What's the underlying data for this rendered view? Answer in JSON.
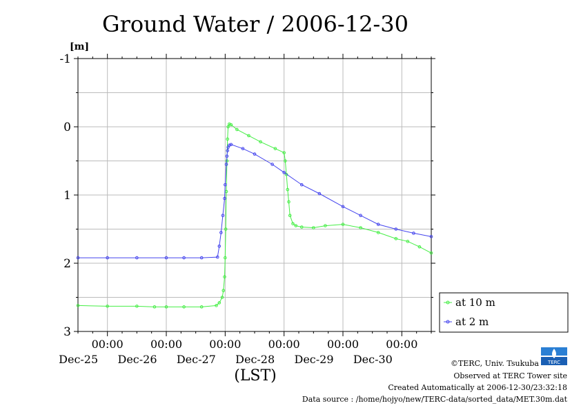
{
  "chart_data": {
    "type": "line",
    "title": "Ground Water / 2006-12-30",
    "xlabel": "(LST)",
    "ylabel": "[m]",
    "ylim": [
      3,
      -1
    ],
    "y_inverted": true,
    "y_ticks": [
      "-1",
      "0",
      "1",
      "2",
      "3"
    ],
    "y_tick_values": [
      -1,
      0,
      1,
      2,
      3
    ],
    "x_unit": "day of December 2006",
    "xlim": [
      24.5,
      30.5
    ],
    "x_ticks": [
      {
        "time": "00:00",
        "date": "Dec-25",
        "value": 25
      },
      {
        "time": "00:00",
        "date": "Dec-26",
        "value": 26
      },
      {
        "time": "00:00",
        "date": "Dec-27",
        "value": 27
      },
      {
        "time": "00:00",
        "date": "Dec-28",
        "value": 28
      },
      {
        "time": "00:00",
        "date": "Dec-29",
        "value": 29
      },
      {
        "time": "00:00",
        "date": "Dec-30",
        "value": 30
      }
    ],
    "grid": true,
    "legend_position": "right",
    "series": [
      {
        "name": "at 10 m",
        "color": "#44ee44",
        "marker": "circle",
        "x": [
          24.5,
          25.0,
          25.5,
          25.8,
          26.0,
          26.3,
          26.6,
          26.85,
          26.9,
          26.95,
          26.97,
          26.99,
          27.0,
          27.01,
          27.02,
          27.03,
          27.04,
          27.05,
          27.07,
          27.1,
          27.2,
          27.4,
          27.6,
          27.85,
          28.0,
          28.02,
          28.04,
          28.06,
          28.08,
          28.1,
          28.15,
          28.2,
          28.3,
          28.5,
          28.7,
          29.0,
          29.3,
          29.6,
          29.9,
          30.1,
          30.3,
          30.5
        ],
        "y": [
          2.62,
          2.63,
          2.63,
          2.64,
          2.64,
          2.64,
          2.64,
          2.62,
          2.58,
          2.5,
          2.4,
          2.2,
          1.92,
          1.5,
          0.95,
          0.5,
          0.18,
          0.0,
          -0.04,
          -0.03,
          0.04,
          0.13,
          0.22,
          0.32,
          0.38,
          0.5,
          0.7,
          0.92,
          1.1,
          1.3,
          1.42,
          1.45,
          1.47,
          1.48,
          1.45,
          1.43,
          1.48,
          1.55,
          1.64,
          1.68,
          1.76,
          1.85
        ]
      },
      {
        "name": "at 2 m",
        "color": "#4444ee",
        "marker": "circle",
        "x": [
          24.5,
          25.0,
          25.5,
          26.0,
          26.3,
          26.6,
          26.87,
          26.9,
          26.93,
          26.96,
          26.99,
          27.0,
          27.02,
          27.03,
          27.04,
          27.05,
          27.07,
          27.1,
          27.3,
          27.5,
          27.8,
          28.0,
          28.3,
          28.6,
          29.0,
          29.3,
          29.6,
          29.9,
          30.2,
          30.5
        ],
        "y": [
          1.92,
          1.92,
          1.92,
          1.92,
          1.92,
          1.92,
          1.91,
          1.75,
          1.55,
          1.3,
          1.05,
          0.85,
          0.55,
          0.43,
          0.35,
          0.3,
          0.27,
          0.26,
          0.32,
          0.4,
          0.55,
          0.67,
          0.85,
          0.98,
          1.17,
          1.3,
          1.43,
          1.5,
          1.56,
          1.61
        ]
      }
    ]
  },
  "footer": {
    "logo_text": "TERC",
    "copyright": "©TERC, Univ. Tsukuba",
    "observed": "Observed at TERC Tower site",
    "created": "Created Automatically at 2006-12-30/23:32:18",
    "source": "Data source : /home/hojyo/new/TERC-data/sorted_data/MET.30m.dat"
  }
}
